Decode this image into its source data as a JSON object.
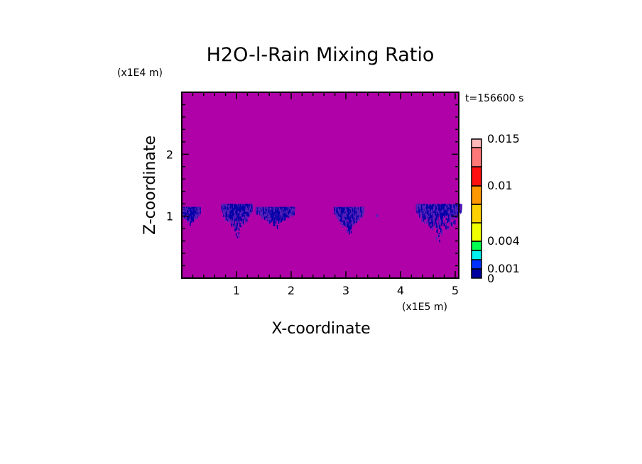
{
  "chart_data": {
    "type": "heatmap",
    "title": "H2O-l-Rain Mixing Ratio",
    "xlabel": "X-coordinate",
    "ylabel": "Z-coordinate",
    "x_scale_label": "(x1E5 m)",
    "y_scale_label": "(x1E4 m)",
    "time_label": "t=156600 s",
    "xlim": [
      0,
      5.12
    ],
    "ylim": [
      0,
      3.0
    ],
    "x_ticks": [
      "1",
      "2",
      "3",
      "4",
      "5"
    ],
    "x_tick_values": [
      1,
      2,
      3,
      4,
      5
    ],
    "y_ticks": [
      "1",
      "2"
    ],
    "y_tick_values": [
      1,
      2
    ],
    "background_color": "#b000a8",
    "colorbar": {
      "levels": [
        0,
        0.001,
        0.002,
        0.003,
        0.004,
        0.006,
        0.008,
        0.01,
        0.012,
        0.014,
        0.015
      ],
      "colors": [
        "#0000a0",
        "#0030ff",
        "#00f0f0",
        "#00ff50",
        "#f0ff00",
        "#ffd000",
        "#ff9800",
        "#ff1010",
        "#ff7878",
        "#ffb8b8"
      ],
      "labels": [
        "0",
        "0.001",
        "0.004",
        "0.01",
        "0.015"
      ],
      "label_values": [
        0,
        0.001,
        0.004,
        0.01,
        0.015
      ]
    },
    "rain_cells": [
      {
        "x_center": 0.15,
        "z_top": 1.15,
        "z_bottom": 0.9,
        "half_width": 0.18
      },
      {
        "x_center": 1.0,
        "z_top": 1.2,
        "z_bottom": 0.6,
        "half_width": 0.28
      },
      {
        "x_center": 1.7,
        "z_top": 1.15,
        "z_bottom": 0.85,
        "half_width": 0.35
      },
      {
        "x_center": 3.05,
        "z_top": 1.15,
        "z_bottom": 0.7,
        "half_width": 0.27
      },
      {
        "x_center": 4.7,
        "z_top": 1.2,
        "z_bottom": 0.5,
        "half_width": 0.42
      }
    ]
  }
}
